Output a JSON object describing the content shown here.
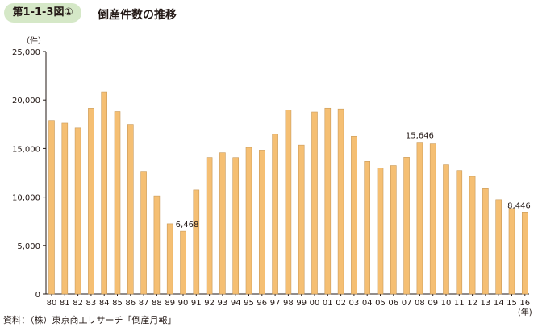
{
  "header": {
    "figure_label": "第1-1-3図①",
    "title": "倒産件数の推移"
  },
  "source_note": "資料：（株）東京商工リサーチ「倒産月報」",
  "chart_data": {
    "type": "bar",
    "y_unit": "（件）",
    "x_unit": "(年)",
    "ylim": [
      0,
      25000
    ],
    "yticks": [
      0,
      5000,
      10000,
      15000,
      20000,
      25000
    ],
    "ytick_labels": [
      "0",
      "5,000",
      "10,000",
      "15,000",
      "20,000",
      "25,000"
    ],
    "grid": false,
    "legend": "none",
    "bar_color": "#f5bf73",
    "bar_edge": "#c99a59",
    "categories": [
      "80",
      "81",
      "82",
      "83",
      "84",
      "85",
      "86",
      "87",
      "88",
      "89",
      "90",
      "91",
      "92",
      "93",
      "94",
      "95",
      "96",
      "97",
      "98",
      "99",
      "00",
      "01",
      "02",
      "03",
      "04",
      "05",
      "06",
      "07",
      "08",
      "09",
      "10",
      "11",
      "12",
      "13",
      "14",
      "15",
      "16"
    ],
    "values": [
      17884,
      17610,
      17122,
      19155,
      20841,
      18812,
      17476,
      12655,
      10122,
      7234,
      6468,
      10723,
      14069,
      14564,
      14061,
      15108,
      14834,
      16464,
      18988,
      15352,
      18769,
      19164,
      19087,
      16255,
      13679,
      12998,
      13245,
      14091,
      15646,
      15480,
      13321,
      12734,
      12124,
      10855,
      9731,
      8812,
      8446
    ],
    "data_labels": [
      {
        "category": "90",
        "label": "6,468"
      },
      {
        "category": "08",
        "label": "15,646"
      },
      {
        "category": "16",
        "label": "8,446"
      }
    ]
  }
}
